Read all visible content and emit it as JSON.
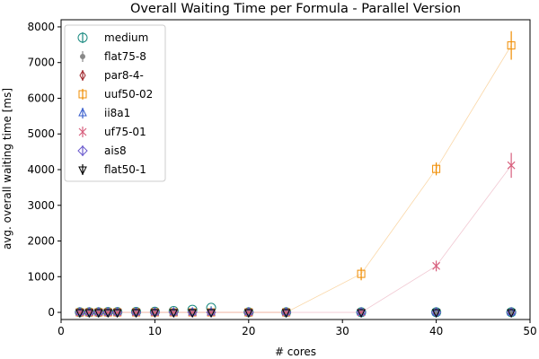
{
  "chart_data": {
    "type": "scatter",
    "title": "Overall Waiting Time per Formula - Parallel Version",
    "xlabel": "# cores",
    "ylabel": "avg. overall waiting time [ms]",
    "xlim": [
      0,
      50
    ],
    "ylim": [
      -200,
      8200
    ],
    "x_ticks": [
      0,
      10,
      20,
      30,
      40,
      50
    ],
    "y_ticks": [
      0,
      1000,
      2000,
      3000,
      4000,
      5000,
      6000,
      7000,
      8000
    ],
    "grid": false,
    "legend_position": "top-left",
    "series": [
      {
        "name": "medium",
        "color": "#1a8a80",
        "marker": "circle-open",
        "line": false,
        "x": [
          2,
          3,
          4,
          5,
          6,
          8,
          10,
          12,
          14,
          16,
          20,
          24,
          32,
          40,
          48
        ],
        "y": [
          5,
          5,
          5,
          10,
          10,
          15,
          20,
          40,
          75,
          130,
          5,
          5,
          5,
          5,
          5
        ],
        "err": [
          5,
          5,
          5,
          5,
          5,
          5,
          10,
          20,
          35,
          40,
          5,
          5,
          5,
          5,
          5
        ]
      },
      {
        "name": "flat75-8",
        "color": "#888888",
        "marker": "dot",
        "line": false,
        "x": [
          2,
          3,
          4,
          5,
          6,
          8,
          10,
          12,
          14,
          16,
          20,
          24,
          32,
          40,
          48
        ],
        "y": [
          0,
          0,
          0,
          0,
          0,
          0,
          0,
          0,
          0,
          0,
          0,
          0,
          0,
          0,
          0
        ],
        "err": [
          5,
          5,
          5,
          5,
          5,
          5,
          5,
          5,
          5,
          5,
          5,
          5,
          5,
          5,
          5
        ]
      },
      {
        "name": "par8-4-",
        "color": "#a0282e",
        "marker": "thin-diamond-open",
        "line": false,
        "x": [
          2,
          3,
          4,
          5,
          6,
          8,
          10,
          12,
          14,
          16,
          20,
          24,
          32,
          40,
          48
        ],
        "y": [
          0,
          0,
          0,
          0,
          0,
          0,
          0,
          0,
          0,
          0,
          0,
          0,
          0,
          0,
          0
        ],
        "err": [
          5,
          5,
          5,
          5,
          5,
          5,
          5,
          5,
          5,
          5,
          5,
          5,
          5,
          5,
          5
        ]
      },
      {
        "name": "uuf50-02",
        "color": "#f08c00",
        "marker": "square-open",
        "line": true,
        "x": [
          2,
          3,
          4,
          5,
          6,
          8,
          10,
          12,
          14,
          16,
          20,
          24,
          32,
          40,
          48
        ],
        "y": [
          0,
          0,
          0,
          0,
          0,
          0,
          0,
          0,
          0,
          0,
          0,
          0,
          1080,
          4020,
          7480
        ],
        "err": [
          5,
          5,
          5,
          5,
          5,
          5,
          5,
          5,
          5,
          5,
          5,
          5,
          180,
          180,
          400
        ]
      },
      {
        "name": "ii8a1",
        "color": "#3a5fcd",
        "marker": "triangle-up",
        "line": false,
        "x": [
          2,
          3,
          4,
          5,
          6,
          8,
          10,
          12,
          14,
          16,
          20,
          24,
          32,
          40,
          48
        ],
        "y": [
          0,
          0,
          0,
          0,
          0,
          0,
          0,
          0,
          0,
          0,
          0,
          0,
          0,
          0,
          0
        ],
        "err": [
          5,
          5,
          5,
          5,
          5,
          5,
          5,
          5,
          5,
          5,
          5,
          5,
          5,
          5,
          5
        ]
      },
      {
        "name": "uf75-01",
        "color": "#d8607e",
        "marker": "x",
        "line": true,
        "x": [
          2,
          3,
          4,
          5,
          6,
          8,
          10,
          12,
          14,
          16,
          20,
          24,
          32,
          40,
          48
        ],
        "y": [
          0,
          0,
          0,
          0,
          0,
          0,
          0,
          0,
          0,
          0,
          0,
          0,
          0,
          1300,
          4120
        ],
        "err": [
          5,
          5,
          5,
          5,
          5,
          5,
          5,
          5,
          5,
          5,
          5,
          5,
          5,
          150,
          350
        ]
      },
      {
        "name": "ais8",
        "color": "#6a5acd",
        "marker": "diamond-open",
        "line": false,
        "x": [
          2,
          3,
          4,
          5,
          6,
          8,
          10,
          12,
          14,
          16,
          20,
          24,
          32,
          40,
          48
        ],
        "y": [
          0,
          0,
          0,
          0,
          0,
          0,
          0,
          0,
          0,
          0,
          0,
          0,
          0,
          0,
          0
        ],
        "err": [
          5,
          5,
          5,
          5,
          5,
          5,
          5,
          5,
          5,
          5,
          5,
          5,
          5,
          5,
          5
        ]
      },
      {
        "name": "flat50-1",
        "color": "#000000",
        "marker": "triangle-down-open",
        "line": false,
        "x": [
          2,
          3,
          4,
          5,
          6,
          8,
          10,
          12,
          14,
          16,
          20,
          24,
          32,
          40,
          48
        ],
        "y": [
          0,
          0,
          0,
          0,
          0,
          0,
          0,
          0,
          0,
          0,
          0,
          0,
          0,
          0,
          0
        ],
        "err": [
          5,
          5,
          5,
          5,
          5,
          5,
          5,
          5,
          5,
          5,
          5,
          5,
          5,
          5,
          5
        ]
      }
    ]
  }
}
